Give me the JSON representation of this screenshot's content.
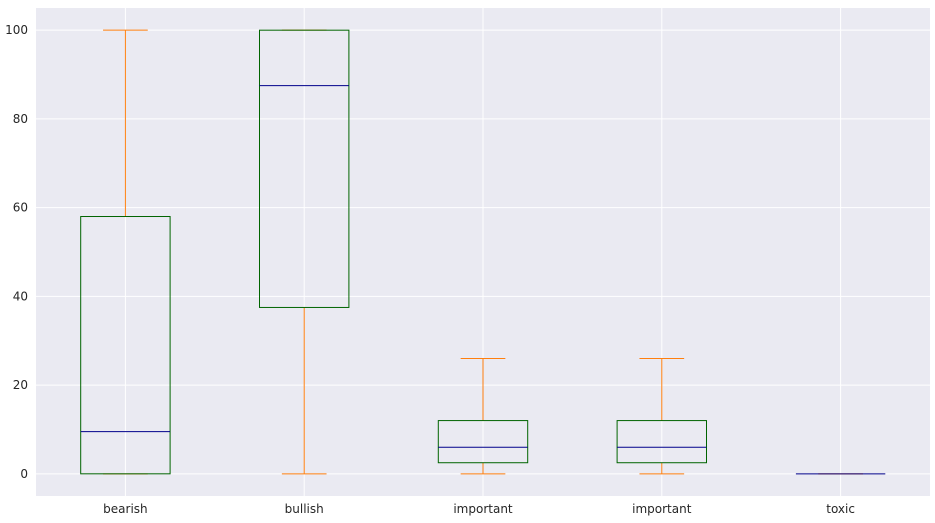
{
  "chart_data": {
    "type": "box",
    "title": "",
    "xlabel": "",
    "ylabel": "",
    "categories": [
      "bearish",
      "bullish",
      "important",
      "important",
      "toxic"
    ],
    "boxes": [
      {
        "label": "bearish",
        "whisker_low": 0,
        "q1": 0,
        "median": 9.5,
        "q3": 58,
        "whisker_high": 100
      },
      {
        "label": "bullish",
        "whisker_low": 0,
        "q1": 37.5,
        "median": 87.5,
        "q3": 100,
        "whisker_high": 100
      },
      {
        "label": "important",
        "whisker_low": 0,
        "q1": 2.5,
        "median": 6,
        "q3": 12,
        "whisker_high": 26
      },
      {
        "label": "important",
        "whisker_low": 0,
        "q1": 2.5,
        "median": 6,
        "q3": 12,
        "whisker_high": 26
      },
      {
        "label": "toxic",
        "whisker_low": 0,
        "q1": 0,
        "median": 0,
        "q3": 0,
        "whisker_high": 0
      }
    ],
    "yticks": [
      0,
      20,
      40,
      60,
      80,
      100
    ],
    "ylim": [
      -5,
      105
    ],
    "grid": true,
    "legend": "none",
    "colors": {
      "background": "#EAEAF2",
      "grid": "#FFFFFF",
      "box": "#006400",
      "median": "#00008B",
      "whisker": "#FF7F0E",
      "cap": "#FF7F0E",
      "text": "#262626"
    }
  }
}
